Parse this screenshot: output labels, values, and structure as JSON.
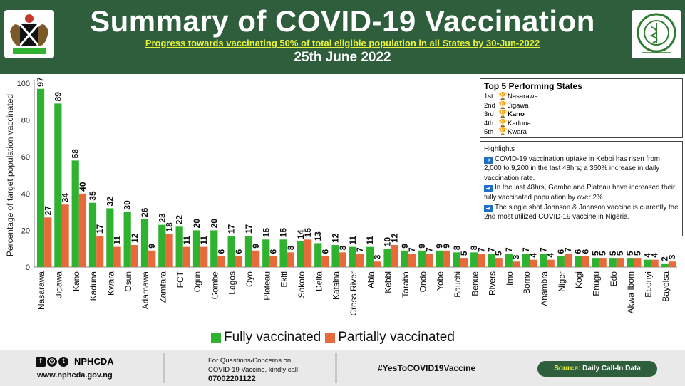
{
  "header": {
    "title": "Summary of COVID-19 Vaccination",
    "subtitle": "Progress towards vaccinating 50% of total eligible population in all States by 30-Jun-2022",
    "date": "25th June 2022"
  },
  "top5": {
    "heading": "Top 5 Performing States",
    "items": [
      {
        "rank": "1st",
        "state": "Nasarawa"
      },
      {
        "rank": "2nd",
        "state": "Jigawa"
      },
      {
        "rank": "3rd",
        "state": "Kano"
      },
      {
        "rank": "4th",
        "state": "Kaduna"
      },
      {
        "rank": "5th",
        "state": "Kwara"
      }
    ]
  },
  "highlights": {
    "heading": "Highlights",
    "items": [
      "COVID-19 vaccination uptake in Kebbi has risen from 2,000 to 9,200 in the last 48hrs; a 360% increase in daily vaccination rate.",
      "In the last 48hrs, Gombe and Plateau have increased their fully vaccinated population by over 2%.",
      "The single shot Johnson & Johnson vaccine is currently the 2nd most utilized COVID-19 vaccine in Nigeria."
    ]
  },
  "footer": {
    "org": "NPHCDA",
    "url": "www.nphcda.gov.ng",
    "questions": [
      "For Questions/Concerns on",
      "COVID-19 Vaccine, kindly call"
    ],
    "phone": "07002201122",
    "hashtag": "#YesToCOVID19Vaccine",
    "source_label": "Source:",
    "source_value": "Daily Call-In Data"
  },
  "colors": {
    "fully": "#2fb22f",
    "partially": "#e8693a",
    "header": "#2e5e3c"
  },
  "chart_data": {
    "type": "bar",
    "ylabel": "Percentage of target population vaccinated",
    "ylim": [
      0,
      100
    ],
    "yticks": [
      0,
      20,
      40,
      60,
      80,
      100
    ],
    "categories": [
      "Nasarawa",
      "Jigawa",
      "Kano",
      "Kaduna",
      "Kwara",
      "Osun",
      "Adamawa",
      "Zamfara",
      "FCT",
      "Ogun",
      "Gombe",
      "Lagos",
      "Oyo",
      "Plateau",
      "Ekiti",
      "Sokoto",
      "Delta",
      "Katsina",
      "Cross River",
      "Abia",
      "Kebbi",
      "Taraba",
      "Ondo",
      "Yobe",
      "Bauchi",
      "Benue",
      "Rivers",
      "Imo",
      "Borno",
      "Anambra",
      "Niger",
      "Kogi",
      "Enugu",
      "Edo",
      "Akwa Ibom",
      "Ebonyi",
      "Bayelsa"
    ],
    "series": [
      {
        "name": "Fully vaccinated",
        "values": [
          97,
          89,
          58,
          35,
          32,
          30,
          26,
          23,
          22,
          20,
          20,
          17,
          17,
          15,
          15,
          14,
          13,
          12,
          11,
          11,
          10,
          9,
          9,
          9,
          8,
          8,
          7,
          7,
          7,
          7,
          6,
          6,
          5,
          5,
          5,
          4,
          2
        ]
      },
      {
        "name": "Partially vaccinated",
        "values": [
          27,
          34,
          40,
          17,
          11,
          12,
          9,
          18,
          11,
          11,
          6,
          6,
          9,
          6,
          8,
          15,
          6,
          8,
          7,
          3,
          12,
          7,
          7,
          9,
          5,
          7,
          5,
          3,
          4,
          4,
          7,
          6,
          5,
          5,
          5,
          4,
          3
        ]
      }
    ],
    "data_labels": [
      97,
      89,
      58,
      40,
      35,
      17,
      32,
      11,
      30,
      12,
      26,
      9,
      23,
      22,
      11,
      20,
      11,
      20,
      6,
      17,
      6,
      17,
      9,
      15,
      15,
      8,
      14,
      13,
      6,
      12,
      8,
      11,
      11,
      3,
      10,
      9,
      9,
      9,
      8,
      5,
      8,
      7,
      7,
      3,
      7,
      7,
      6,
      5,
      5,
      5,
      4,
      2
    ],
    "legend": "bottom"
  }
}
